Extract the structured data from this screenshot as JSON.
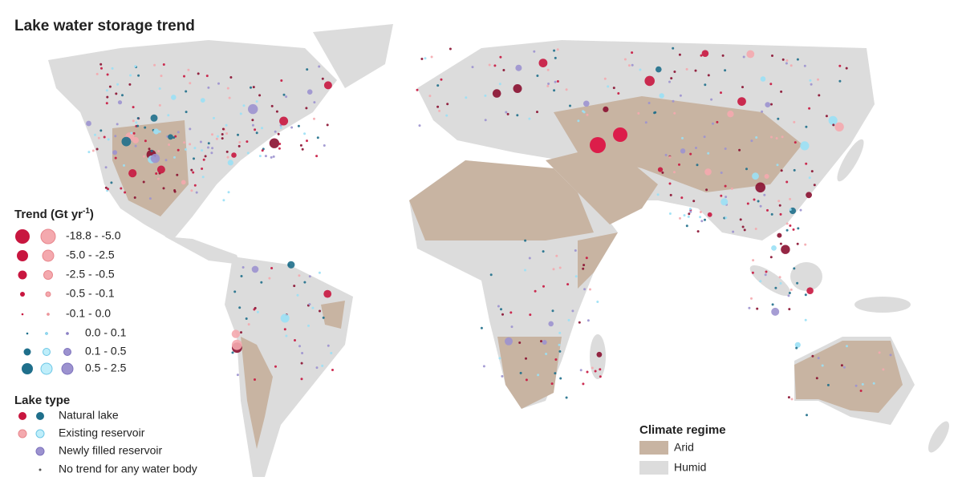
{
  "title": "Lake water storage trend",
  "trend_legend": {
    "title_main": "Trend (Gt yr",
    "title_sup": "-1",
    "title_end": ")",
    "classes": [
      "-18.8 - -5.0",
      "-5.0 - -2.5",
      "-2.5 - -0.5",
      "-0.5 - -0.1",
      "-0.1 - 0.0",
      "0.0 - 0.1",
      "0.1 - 0.5",
      "0.5 - 2.5"
    ]
  },
  "lake_type": {
    "title": "Lake type",
    "items": [
      "Natural lake",
      "Existing reservoir",
      "Newly filled reservoir",
      "No trend for any water body"
    ]
  },
  "climate_regime": {
    "title": "Climate regime",
    "items": [
      "Arid",
      "Humid"
    ]
  }
}
